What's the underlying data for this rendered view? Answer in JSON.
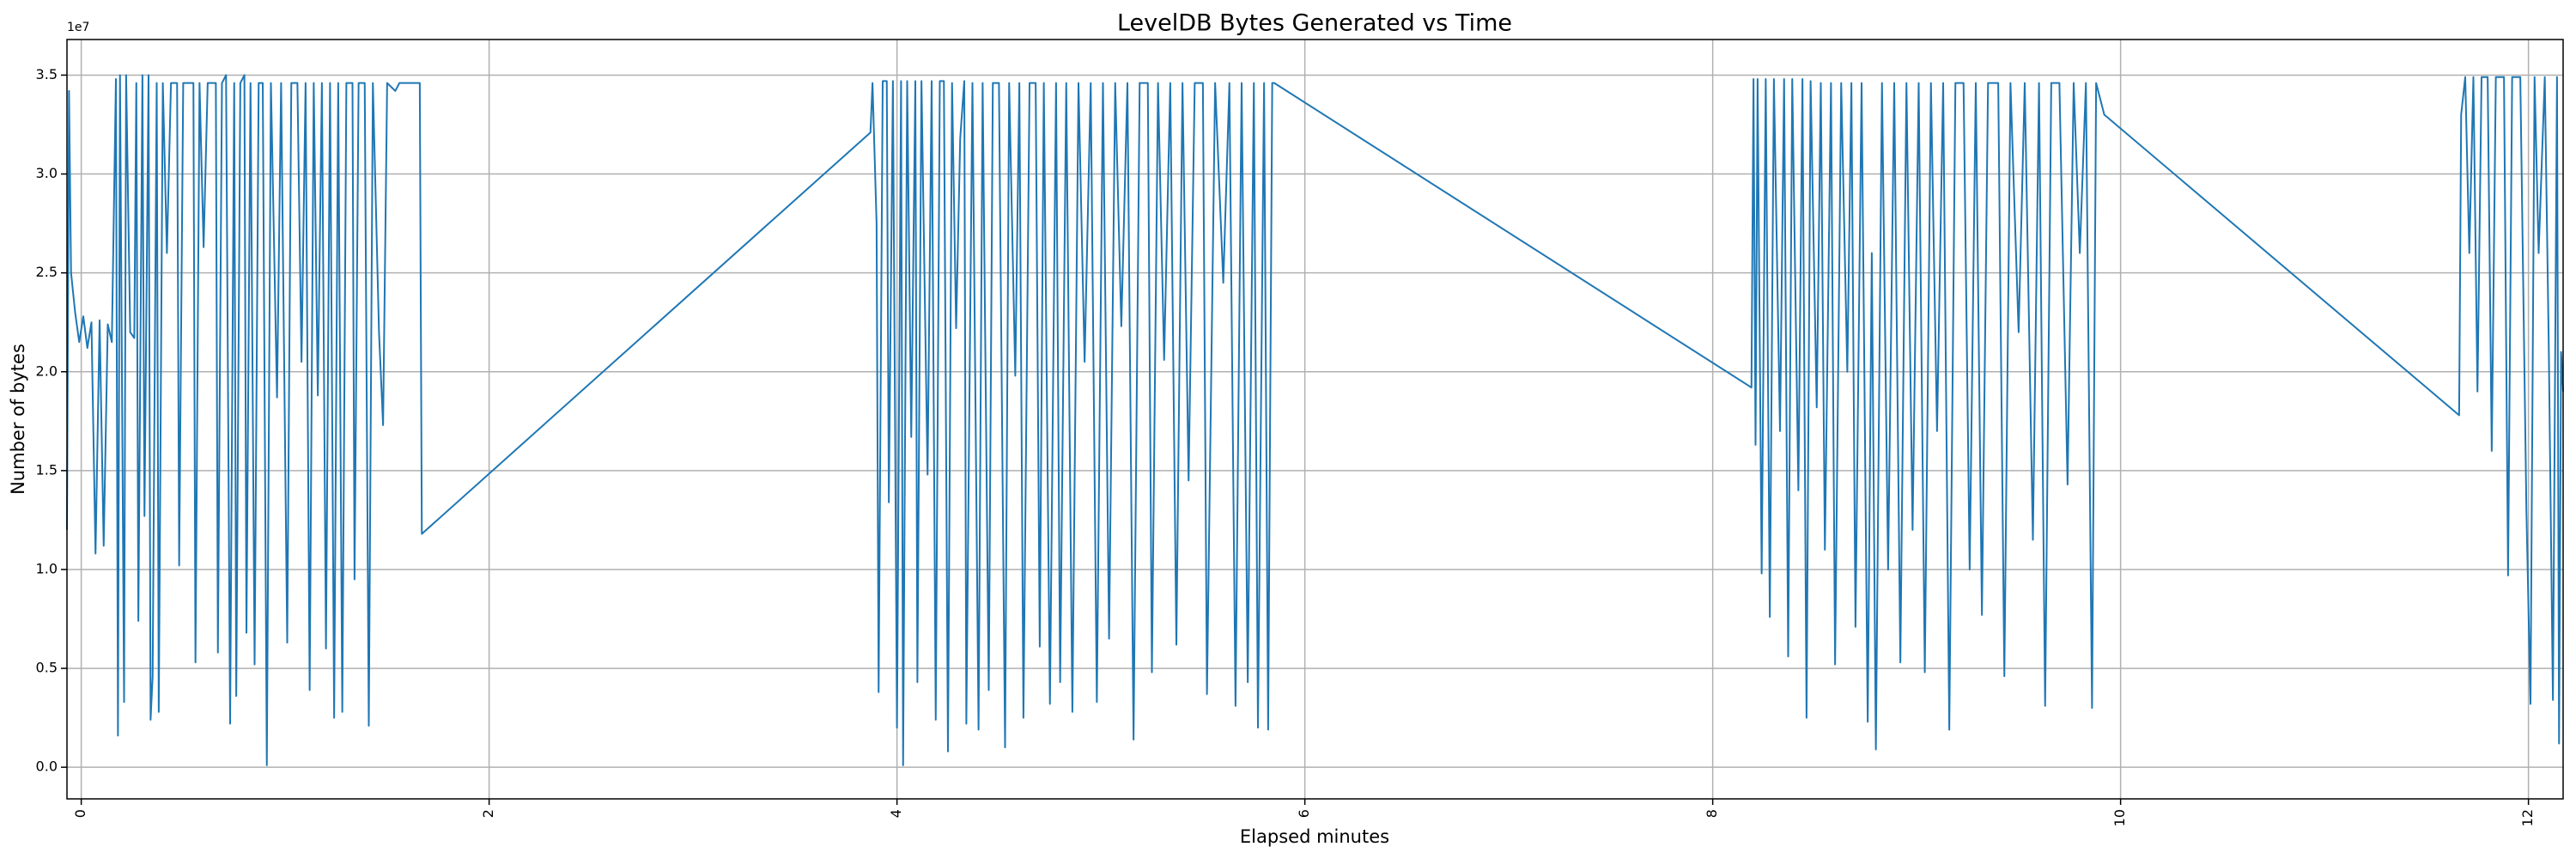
{
  "chart_data": {
    "type": "line",
    "title": "LevelDB Bytes Generated vs Time",
    "x_label": "Elapsed minutes",
    "y_label": "Number of bytes",
    "y_offset_label": "1e7",
    "color": "#1f77b4",
    "grid": true,
    "xlim": [
      -0.07,
      12.17
    ],
    "ylim": [
      -1600000,
      36800000
    ],
    "xticks": [
      0,
      2,
      4,
      6,
      8,
      10,
      12
    ],
    "yticks": [
      {
        "value": 0,
        "label": "0.0"
      },
      {
        "value": 5000000,
        "label": "0.5"
      },
      {
        "value": 10000000,
        "label": "1.0"
      },
      {
        "value": 15000000,
        "label": "1.5"
      },
      {
        "value": 20000000,
        "label": "2.0"
      },
      {
        "value": 25000000,
        "label": "2.5"
      },
      {
        "value": 30000000,
        "label": "3.0"
      },
      {
        "value": 35000000,
        "label": "3.5"
      }
    ],
    "x": [
      -0.07,
      -0.06,
      -0.05,
      -0.03,
      -0.01,
      0.01,
      0.03,
      0.05,
      0.07,
      0.09,
      0.11,
      0.13,
      0.15,
      0.17,
      0.18,
      0.19,
      0.21,
      0.22,
      0.24,
      0.26,
      0.27,
      0.28,
      0.3,
      0.31,
      0.33,
      0.34,
      0.35,
      0.37,
      0.38,
      0.4,
      0.42,
      0.44,
      0.47,
      0.48,
      0.5,
      0.52,
      0.55,
      0.56,
      0.58,
      0.6,
      0.62,
      0.66,
      0.67,
      0.69,
      0.71,
      0.73,
      0.75,
      0.76,
      0.78,
      0.8,
      0.81,
      0.83,
      0.85,
      0.87,
      0.89,
      0.91,
      0.93,
      0.96,
      0.98,
      1.01,
      1.03,
      1.06,
      1.08,
      1.1,
      1.12,
      1.14,
      1.16,
      1.18,
      1.2,
      1.22,
      1.24,
      1.26,
      1.28,
      1.3,
      1.33,
      1.34,
      1.36,
      1.39,
      1.41,
      1.43,
      1.46,
      1.48,
      1.5,
      1.54,
      1.56,
      1.66,
      1.67,
      3.87,
      3.88,
      3.9,
      3.91,
      3.93,
      3.95,
      3.96,
      3.98,
      4.0,
      4.02,
      4.03,
      4.05,
      4.07,
      4.09,
      4.1,
      4.12,
      4.15,
      4.17,
      4.19,
      4.21,
      4.23,
      4.25,
      4.27,
      4.29,
      4.31,
      4.33,
      4.34,
      4.37,
      4.4,
      4.42,
      4.45,
      4.47,
      4.5,
      4.53,
      4.55,
      4.58,
      4.6,
      4.62,
      4.65,
      4.68,
      4.7,
      4.72,
      4.75,
      4.78,
      4.8,
      4.83,
      4.86,
      4.89,
      4.92,
      4.95,
      4.98,
      5.01,
      5.04,
      5.07,
      5.1,
      5.13,
      5.16,
      5.19,
      5.23,
      5.25,
      5.28,
      5.31,
      5.34,
      5.37,
      5.4,
      5.43,
      5.46,
      5.5,
      5.52,
      5.56,
      5.6,
      5.63,
      5.66,
      5.69,
      5.72,
      5.75,
      5.77,
      5.8,
      5.82,
      5.84,
      5.85,
      8.19,
      8.2,
      8.21,
      8.22,
      8.24,
      8.26,
      8.28,
      8.3,
      8.33,
      8.35,
      8.37,
      8.39,
      8.42,
      8.44,
      8.46,
      8.48,
      8.51,
      8.53,
      8.55,
      8.58,
      8.6,
      8.63,
      8.66,
      8.68,
      8.7,
      8.73,
      8.76,
      8.78,
      8.8,
      8.83,
      8.86,
      8.89,
      8.92,
      8.95,
      8.98,
      9.01,
      9.04,
      9.07,
      9.1,
      9.13,
      9.16,
      9.19,
      9.23,
      9.26,
      9.29,
      9.32,
      9.35,
      9.4,
      9.43,
      9.46,
      9.5,
      9.53,
      9.57,
      9.6,
      9.63,
      9.66,
      9.7,
      9.74,
      9.77,
      9.8,
      9.83,
      9.86,
      9.88,
      9.92,
      11.66,
      11.67,
      11.69,
      11.71,
      11.73,
      11.75,
      11.77,
      11.8,
      11.82,
      11.84,
      11.88,
      11.9,
      11.92,
      11.96,
      11.99,
      12.01,
      12.03,
      12.05,
      12.08,
      12.1,
      12.12,
      12.14,
      12.15,
      12.16,
      12.17
    ],
    "values": [
      12000000,
      34200000,
      25000000,
      23000000,
      21500000,
      22800000,
      21200000,
      22500000,
      10800000,
      22600000,
      11200000,
      22400000,
      21500000,
      34800000,
      1600000,
      35000000,
      3300000,
      35000000,
      22000000,
      21700000,
      34600000,
      7400000,
      35000000,
      12700000,
      35000000,
      2400000,
      4600000,
      34600000,
      2800000,
      34600000,
      26000000,
      34600000,
      34600000,
      10200000,
      34600000,
      34600000,
      34600000,
      5300000,
      34600000,
      26300000,
      34600000,
      34600000,
      5800000,
      34600000,
      35000000,
      2200000,
      34600000,
      3600000,
      34600000,
      35000000,
      6800000,
      34600000,
      5200000,
      34600000,
      34600000,
      100000,
      34600000,
      18700000,
      34600000,
      6300000,
      34600000,
      34600000,
      20500000,
      34600000,
      3900000,
      34600000,
      18800000,
      34600000,
      6000000,
      34600000,
      2500000,
      34600000,
      2800000,
      34600000,
      34600000,
      9500000,
      34600000,
      34600000,
      2100000,
      34600000,
      22000000,
      17300000,
      34600000,
      34200000,
      34600000,
      34600000,
      11800000,
      32100000,
      34600000,
      27500000,
      3800000,
      34700000,
      34700000,
      13400000,
      34700000,
      2000000,
      34700000,
      100000,
      34700000,
      16700000,
      34700000,
      4300000,
      34700000,
      14800000,
      34700000,
      2400000,
      34700000,
      34700000,
      800000,
      34600000,
      22200000,
      31800000,
      34700000,
      2200000,
      34600000,
      1900000,
      34600000,
      3900000,
      34600000,
      34600000,
      1000000,
      34600000,
      19800000,
      34600000,
      2500000,
      34600000,
      34600000,
      6100000,
      34600000,
      3200000,
      34600000,
      4300000,
      34600000,
      2800000,
      34600000,
      20500000,
      34600000,
      3300000,
      34600000,
      6500000,
      34600000,
      22300000,
      34600000,
      1400000,
      34600000,
      34600000,
      4800000,
      34600000,
      20600000,
      34600000,
      6200000,
      34600000,
      14500000,
      34600000,
      34600000,
      3700000,
      34600000,
      24500000,
      34600000,
      3100000,
      34600000,
      4300000,
      34600000,
      2000000,
      34600000,
      1900000,
      34600000,
      34600000,
      19200000,
      34800000,
      16300000,
      34800000,
      9800000,
      34800000,
      7600000,
      34800000,
      17000000,
      34800000,
      5600000,
      34800000,
      14000000,
      34800000,
      2500000,
      34700000,
      18200000,
      34600000,
      11000000,
      34600000,
      5200000,
      34600000,
      20000000,
      34600000,
      7100000,
      34600000,
      2300000,
      26000000,
      900000,
      34600000,
      10000000,
      34600000,
      5300000,
      34600000,
      12000000,
      34600000,
      4800000,
      34600000,
      17000000,
      34600000,
      1900000,
      34600000,
      34600000,
      10000000,
      34600000,
      7700000,
      34600000,
      34600000,
      4600000,
      34600000,
      22000000,
      34600000,
      11500000,
      34600000,
      3100000,
      34600000,
      34600000,
      14300000,
      34600000,
      26000000,
      34600000,
      3000000,
      34600000,
      33000000,
      17800000,
      33000000,
      34900000,
      26000000,
      34900000,
      19000000,
      34900000,
      34900000,
      16000000,
      34900000,
      34900000,
      9700000,
      34900000,
      34900000,
      13000000,
      3200000,
      34900000,
      26000000,
      34900000,
      21000000,
      3400000,
      34900000,
      1200000,
      21000000,
      19000000
    ]
  }
}
